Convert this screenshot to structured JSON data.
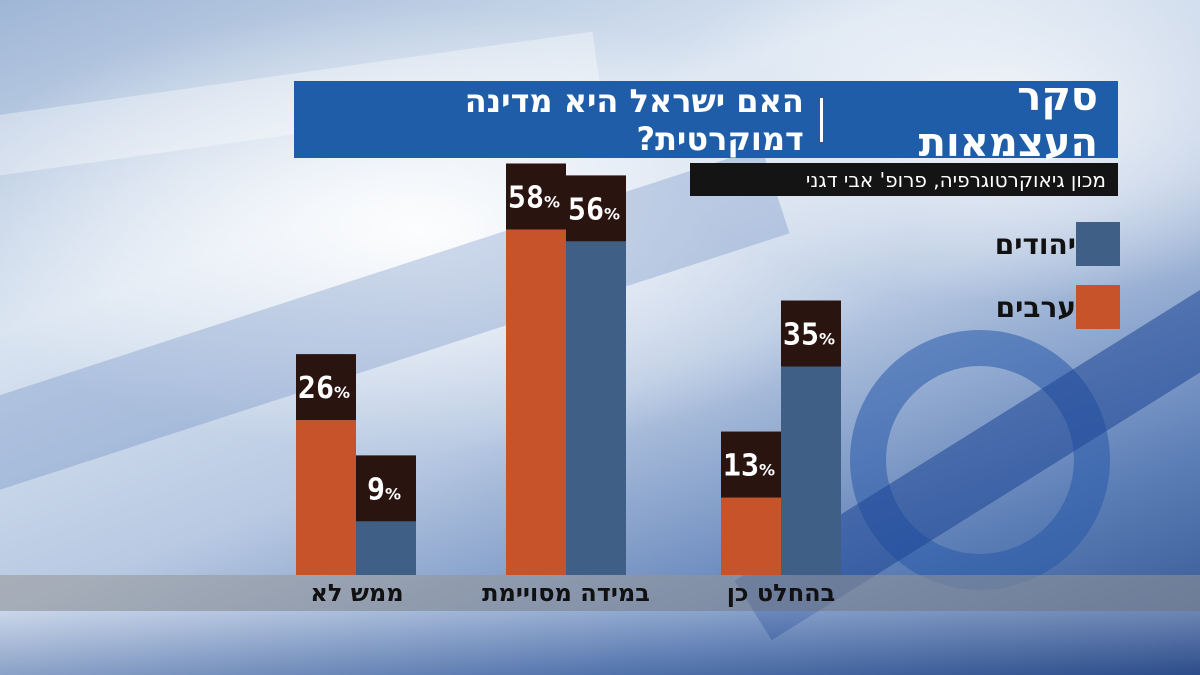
{
  "header": {
    "title": "סקר העצמאות",
    "question": "האם ישראל היא מדינה דמוקרטית?",
    "source": "מכון גיאוקרטוגרפיה, פרופ' אבי דגני"
  },
  "colors": {
    "jews": "#3f5f86",
    "arabs": "#c7532b",
    "label_box": "#2a1410"
  },
  "chart_data": {
    "type": "bar",
    "categories": [
      "ממש לא",
      "במידה מסויימת",
      "בהחלט כן"
    ],
    "series": [
      {
        "name": "ערבים",
        "values": [
          26,
          58,
          13
        ]
      },
      {
        "name": "יהודים",
        "values": [
          9,
          56,
          35
        ]
      }
    ],
    "unit": "%",
    "ylim": [
      0,
      70
    ],
    "legend": "top-right",
    "grid": false
  }
}
